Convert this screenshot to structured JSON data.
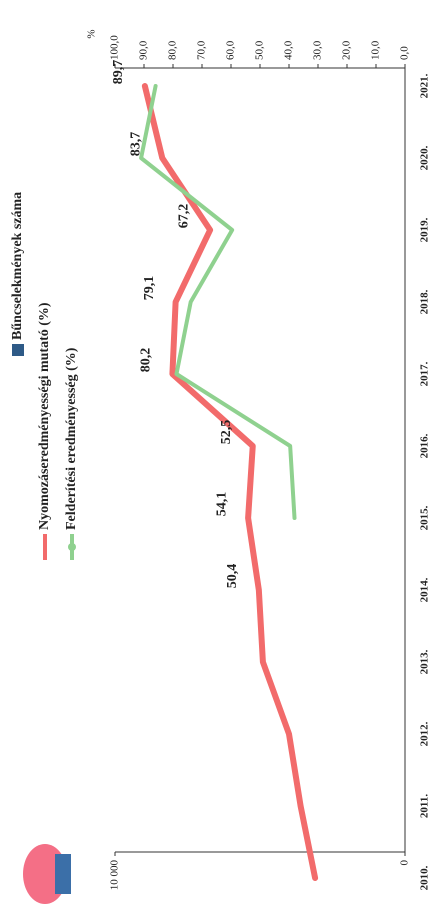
{
  "chart_data": {
    "type": "line",
    "categories": [
      "2010.",
      "2011.",
      "2012.",
      "2013.",
      "2014.",
      "2015.",
      "2016.",
      "2017.",
      "2018.",
      "2019.",
      "2020.",
      "2021."
    ],
    "ylim": [
      0,
      10000
    ],
    "yticks": [
      0,
      {
        "value": 10000,
        "label": "10 000"
      }
    ],
    "y2label": "%",
    "y2lim": [
      0,
      100
    ],
    "y2ticks": [
      {
        "value": 0,
        "label": "0,0"
      },
      {
        "value": 10,
        "label": "10,0"
      },
      {
        "value": 20,
        "label": "20,0"
      },
      {
        "value": 30,
        "label": "30,0"
      },
      {
        "value": 40,
        "label": "40,0"
      },
      {
        "value": 50,
        "label": "50,0"
      },
      {
        "value": 60,
        "label": "60,0"
      },
      {
        "value": 70,
        "label": "70,0"
      },
      {
        "value": 80,
        "label": "80,0"
      },
      {
        "value": 90,
        "label": "90,0"
      },
      {
        "value": 100,
        "label": "100,0"
      }
    ],
    "series": [
      {
        "name": "Bűncselekmények száma",
        "color": "#2e5a87",
        "values": [
          null,
          null,
          null,
          null,
          null,
          null,
          null,
          null,
          null,
          null,
          null,
          null
        ]
      },
      {
        "name": "Nyomozáseredményességi mutató (%)",
        "color": "#f26b6b",
        "axis": "y2",
        "values": [
          31,
          36,
          40,
          49,
          50.4,
          54.1,
          52.5,
          80.2,
          79.1,
          67.2,
          83.7,
          89.7
        ],
        "value_labels": [
          null,
          null,
          null,
          null,
          "50,4",
          "54,1",
          "52,5",
          "80,2",
          "79,1",
          "67,2",
          "83,7",
          "89,7"
        ]
      },
      {
        "name": "Felderítési eredményesség (%)",
        "color": "#8fd18f",
        "axis": "y2",
        "values": [
          null,
          null,
          null,
          null,
          null,
          38.1,
          39.6,
          78.8,
          73.9,
          59.6,
          91,
          86
        ]
      }
    ]
  }
}
